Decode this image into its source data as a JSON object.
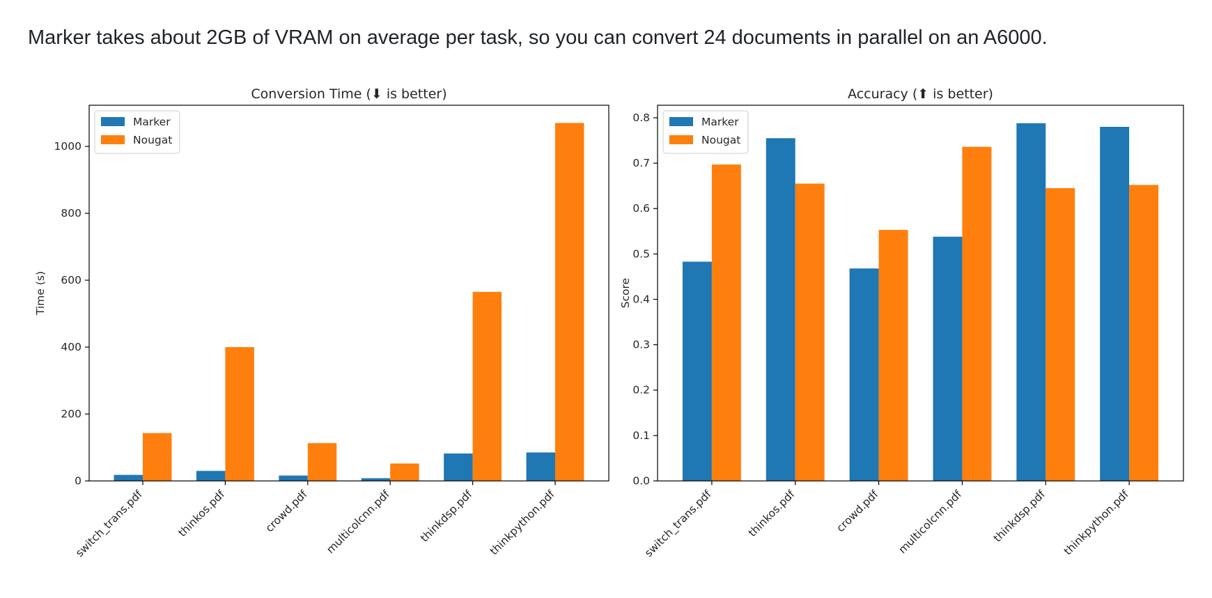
{
  "intro_text": "Marker takes about 2GB of VRAM on average per task, so you can convert 24 documents in parallel on an A6000.",
  "chart_data": [
    {
      "type": "bar",
      "title": "Conversion Time (⬇ is better)",
      "xlabel": "",
      "ylabel": "Time (s)",
      "categories": [
        "switch_trans.pdf",
        "thinkos.pdf",
        "crowd.pdf",
        "multicolcnn.pdf",
        "thinkdsp.pdf",
        "thinkpython.pdf"
      ],
      "series": [
        {
          "name": "Marker",
          "color": "#1f77b4",
          "values": [
            18,
            30,
            16,
            8,
            82,
            85
          ]
        },
        {
          "name": "Nougat",
          "color": "#ff7f0e",
          "values": [
            143,
            400,
            113,
            52,
            565,
            1070
          ]
        }
      ],
      "ylim": [
        0,
        1123
      ],
      "yticks": [
        0,
        200,
        400,
        600,
        800,
        1000
      ],
      "ytick_labels": [
        "0",
        "200",
        "400",
        "600",
        "800",
        "1000"
      ],
      "legend": "upper-left",
      "grid": false
    },
    {
      "type": "bar",
      "title": "Accuracy (⬆ is better)",
      "xlabel": "",
      "ylabel": "Score",
      "categories": [
        "switch_trans.pdf",
        "thinkos.pdf",
        "crowd.pdf",
        "multicolcnn.pdf",
        "thinkdsp.pdf",
        "thinkpython.pdf"
      ],
      "series": [
        {
          "name": "Marker",
          "color": "#1f77b4",
          "values": [
            0.483,
            0.755,
            0.468,
            0.538,
            0.788,
            0.78
          ]
        },
        {
          "name": "Nougat",
          "color": "#ff7f0e",
          "values": [
            0.697,
            0.655,
            0.553,
            0.736,
            0.645,
            0.652
          ]
        }
      ],
      "ylim": [
        0,
        0.8276
      ],
      "yticks": [
        0,
        0.1,
        0.2,
        0.3,
        0.4,
        0.5,
        0.6,
        0.7,
        0.8
      ],
      "ytick_labels": [
        "0.0",
        "0.1",
        "0.2",
        "0.3",
        "0.4",
        "0.5",
        "0.6",
        "0.7",
        "0.8"
      ],
      "legend": "upper-left",
      "grid": false
    }
  ]
}
